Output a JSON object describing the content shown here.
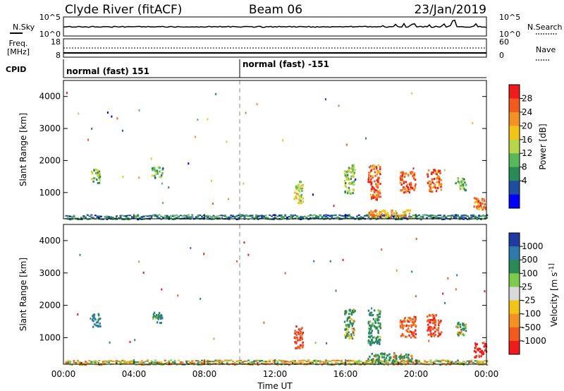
{
  "header": {
    "station": "Clyde River (fitACF)",
    "beam": "Beam 06",
    "date": "23/Jan/2019"
  },
  "top_panels": {
    "nsky_label": "N.Sky",
    "nsky_ticks": [
      "10^5",
      "10^0"
    ],
    "nsearch_label": "N.Search",
    "nsearch_ticks": [
      "10^5",
      "10^0"
    ],
    "freq_label": "Freq.",
    "freq_unit": "[MHz]",
    "freq_ticks": [
      "18",
      "8"
    ],
    "nave_label": "Nave",
    "nave_ticks": [
      "60",
      "0"
    ],
    "cpid_label": "CPID",
    "cpid_segments": [
      {
        "start": "00:00",
        "text": "normal (fast) 151"
      },
      {
        "start": "10:00",
        "text": "normal (fast) -151"
      }
    ]
  },
  "colors": {
    "power_scale": [
      "#0000ff",
      "#1f4ea0",
      "#2a8a55",
      "#58b958",
      "#b7d64a",
      "#f2c417",
      "#f39125",
      "#f25a1e",
      "#ee1c1c"
    ],
    "velocity_scale": [
      "#ee1c1c",
      "#f25a1e",
      "#f39125",
      "#f2c417",
      "#d9d9d9",
      "#7ccb4a",
      "#2a8a55",
      "#2e7aa8",
      "#1f3aa0"
    ],
    "ground_scatter": "#c8c8c8"
  },
  "chart_data": [
    {
      "type": "heatmap",
      "title": "",
      "xlabel": "",
      "ylabel": "Slant Range [km]",
      "colorbar_label": "Power [dB]",
      "colorbar_ticks": [
        "28",
        "24",
        "20",
        "16",
        "12",
        "8",
        "4"
      ],
      "clim": [
        0,
        32
      ],
      "x_ticks": [
        "00:00",
        "04:00",
        "08:00",
        "12:00",
        "16:00",
        "20:00",
        "00:00"
      ],
      "y_ticks": [
        "1000",
        "2000",
        "3000",
        "4000"
      ],
      "xlim_hours": [
        0,
        24
      ],
      "ylim_km": [
        180,
        4500
      ],
      "patches": [
        {
          "t": 1.8,
          "r": 1550,
          "dt": 0.5,
          "dr": 450,
          "v": 14
        },
        {
          "t": 5.3,
          "r": 1650,
          "dt": 0.6,
          "dr": 350,
          "v": 12
        },
        {
          "t": 13.3,
          "r": 1050,
          "dt": 0.5,
          "dr": 700,
          "v": 18
        },
        {
          "t": 16.2,
          "r": 1450,
          "dt": 0.6,
          "dr": 900,
          "v": 14
        },
        {
          "t": 17.6,
          "r": 1350,
          "dt": 0.7,
          "dr": 1100,
          "v": 26
        },
        {
          "t": 19.5,
          "r": 1350,
          "dt": 0.9,
          "dr": 650,
          "v": 27
        },
        {
          "t": 21.0,
          "r": 1400,
          "dt": 0.8,
          "dr": 700,
          "v": 26
        },
        {
          "t": 22.5,
          "r": 1300,
          "dt": 0.6,
          "dr": 400,
          "v": 12
        },
        {
          "t": 18.5,
          "r": 350,
          "dt": 2.5,
          "dr": 250,
          "v": 22
        },
        {
          "t": 23.6,
          "r": 650,
          "dt": 0.7,
          "dr": 450,
          "v": 24
        }
      ],
      "band": {
        "r": 250,
        "dr": 150,
        "v": 8
      }
    },
    {
      "type": "heatmap",
      "title": "",
      "xlabel": "Time UT",
      "ylabel": "Slant Range [km]",
      "colorbar_label": "Velocity [m s^-1]",
      "colorbar_ticks": [
        "1000",
        "500",
        "100",
        "25",
        "-25",
        "-100",
        "-500",
        "-1000"
      ],
      "clim": [
        -1000,
        1000
      ],
      "x_ticks": [
        "00:00",
        "04:00",
        "08:00",
        "12:00",
        "16:00",
        "20:00",
        "00:00"
      ],
      "y_ticks": [
        "1000",
        "2000",
        "3000",
        "4000"
      ],
      "xlim_hours": [
        0,
        24
      ],
      "ylim_km": [
        180,
        4500
      ],
      "patches": [
        {
          "t": 1.8,
          "r": 1550,
          "dt": 0.5,
          "dr": 450,
          "v": 700
        },
        {
          "t": 5.3,
          "r": 1650,
          "dt": 0.6,
          "dr": 350,
          "v": 300
        },
        {
          "t": 13.3,
          "r": 1050,
          "dt": 0.5,
          "dr": 700,
          "v": -400
        },
        {
          "t": 16.2,
          "r": 1450,
          "dt": 0.6,
          "dr": 900,
          "v": 200
        },
        {
          "t": 17.6,
          "r": 1350,
          "dt": 0.7,
          "dr": 1100,
          "v": 300
        },
        {
          "t": 19.5,
          "r": 1350,
          "dt": 0.9,
          "dr": 650,
          "v": -300
        },
        {
          "t": 21.0,
          "r": 1400,
          "dt": 0.8,
          "dr": 700,
          "v": -400
        },
        {
          "t": 22.5,
          "r": 1300,
          "dt": 0.6,
          "dr": 400,
          "v": 100
        },
        {
          "t": 18.5,
          "r": 400,
          "dt": 2.5,
          "dr": 300,
          "v": 150
        },
        {
          "t": 23.6,
          "r": 650,
          "dt": 0.7,
          "dr": 450,
          "v": -700
        }
      ],
      "band": {
        "r": 250,
        "dr": 150,
        "v": 0
      }
    }
  ]
}
